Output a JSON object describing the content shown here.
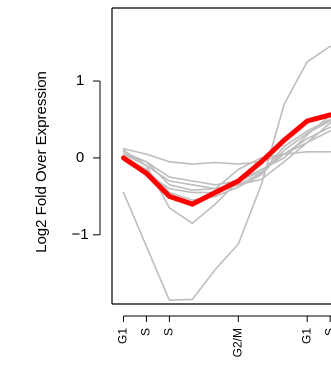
{
  "chart_data": {
    "type": "line",
    "ylabel": "Log2 Fold Over Expression",
    "xlabel": "",
    "x_ticks": [
      {
        "x": 1,
        "label": "G1"
      },
      {
        "x": 2,
        "label": "S"
      },
      {
        "x": 3,
        "label": "S"
      },
      {
        "x": 6,
        "label": "G2/M"
      },
      {
        "x": 9,
        "label": "G1"
      },
      {
        "x": 10,
        "label": "S"
      }
    ],
    "y_ticks": [
      1,
      0,
      -1
    ],
    "y_tick_labels": [
      "1",
      "0",
      "−1"
    ],
    "xlim": [
      0.5,
      11.3
    ],
    "ylim": [
      -1.9,
      1.95
    ],
    "grey_series": [
      {
        "values": [
          [
            1,
            0.12
          ],
          [
            2,
            0.05
          ],
          [
            3,
            -0.05
          ],
          [
            4,
            -0.08
          ],
          [
            5,
            -0.06
          ],
          [
            6,
            -0.08
          ],
          [
            7,
            -0.05
          ],
          [
            8,
            0.05
          ],
          [
            9,
            0.25
          ],
          [
            10,
            0.4
          ],
          [
            11,
            0.48
          ]
        ]
      },
      {
        "values": [
          [
            1,
            0.08
          ],
          [
            2,
            -0.05
          ],
          [
            3,
            -0.35
          ],
          [
            4,
            -0.42
          ],
          [
            5,
            -0.4
          ],
          [
            6,
            -0.35
          ],
          [
            7,
            -0.28
          ],
          [
            8,
            -0.05
          ],
          [
            9,
            0.2
          ],
          [
            10,
            0.45
          ],
          [
            11,
            0.6
          ]
        ]
      },
      {
        "values": [
          [
            1,
            0.1
          ],
          [
            2,
            -0.1
          ],
          [
            3,
            -0.65
          ],
          [
            4,
            -0.85
          ],
          [
            5,
            -0.6
          ],
          [
            6,
            -0.3
          ],
          [
            7,
            -0.15
          ],
          [
            8,
            0.0
          ],
          [
            9,
            0.3
          ],
          [
            10,
            0.55
          ],
          [
            11,
            0.72
          ]
        ]
      },
      {
        "values": [
          [
            1,
            -0.45
          ],
          [
            2,
            -1.15
          ],
          [
            3,
            -1.85
          ],
          [
            4,
            -1.84
          ],
          [
            5,
            -1.45
          ],
          [
            6,
            -1.12
          ],
          [
            7,
            -0.35
          ],
          [
            8,
            0.7
          ],
          [
            9,
            1.25
          ],
          [
            10,
            1.45
          ],
          [
            11,
            1.55
          ]
        ]
      },
      {
        "values": [
          [
            1,
            0.05
          ],
          [
            2,
            -0.1
          ],
          [
            3,
            -0.3
          ],
          [
            4,
            -0.35
          ],
          [
            5,
            -0.4
          ],
          [
            6,
            -0.15
          ],
          [
            7,
            0.0
          ],
          [
            8,
            0.05
          ],
          [
            9,
            0.08
          ],
          [
            10,
            0.08
          ],
          [
            11,
            0.1
          ]
        ]
      },
      {
        "values": [
          [
            1,
            0.0
          ],
          [
            2,
            -0.2
          ],
          [
            3,
            -0.4
          ],
          [
            4,
            -0.45
          ],
          [
            5,
            -0.45
          ],
          [
            6,
            -0.35
          ],
          [
            7,
            -0.2
          ],
          [
            8,
            0.15
          ],
          [
            9,
            0.35
          ],
          [
            10,
            0.5
          ],
          [
            11,
            0.55
          ]
        ]
      },
      {
        "values": [
          [
            1,
            0.02
          ],
          [
            2,
            -0.15
          ],
          [
            3,
            -0.45
          ],
          [
            4,
            -0.55
          ],
          [
            5,
            -0.5
          ],
          [
            6,
            -0.38
          ],
          [
            7,
            -0.22
          ],
          [
            8,
            0.1
          ],
          [
            9,
            0.32
          ],
          [
            10,
            0.48
          ],
          [
            11,
            0.58
          ]
        ]
      },
      {
        "values": [
          [
            1,
            0.05
          ],
          [
            2,
            -0.05
          ],
          [
            3,
            -0.25
          ],
          [
            4,
            -0.3
          ],
          [
            5,
            -0.35
          ],
          [
            6,
            -0.3
          ],
          [
            7,
            -0.18
          ],
          [
            8,
            0.05
          ],
          [
            9,
            0.2
          ],
          [
            10,
            0.35
          ],
          [
            11,
            0.42
          ]
        ]
      }
    ],
    "mean_series": {
      "color": "#ff0000",
      "values": [
        [
          1,
          0.0
        ],
        [
          2,
          -0.2
        ],
        [
          3,
          -0.5
        ],
        [
          4,
          -0.6
        ],
        [
          5,
          -0.45
        ],
        [
          6,
          -0.3
        ],
        [
          7,
          -0.05
        ],
        [
          8,
          0.23
        ],
        [
          9,
          0.48
        ],
        [
          10,
          0.56
        ],
        [
          11,
          0.58
        ]
      ]
    },
    "grey_color": "#bebebe",
    "axis_color": "#000000",
    "grid": false
  }
}
